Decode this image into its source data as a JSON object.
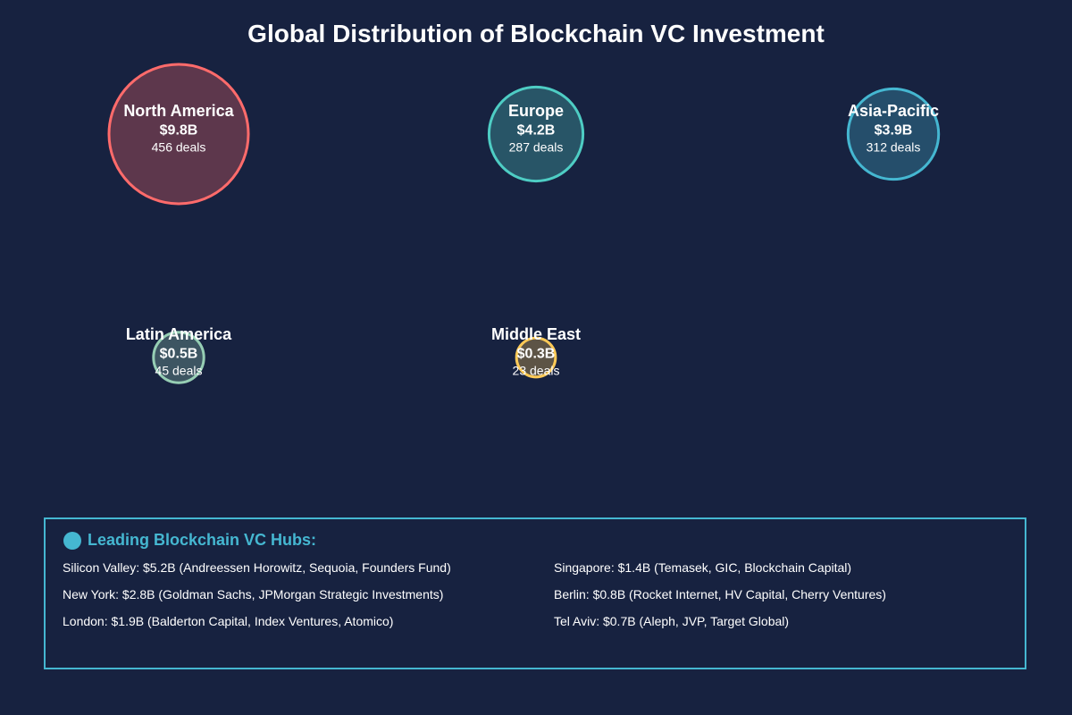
{
  "chart_data": {
    "type": "bubble",
    "title": "Global Distribution of Blockchain VC Investment",
    "unit": "USD billions",
    "regions": [
      {
        "name": "North America",
        "value_label": "$9.8B",
        "value": 9.8,
        "deals_label": "456 deals",
        "deals": 456,
        "color": "#ff6b6b"
      },
      {
        "name": "Europe",
        "value_label": "$4.2B",
        "value": 4.2,
        "deals_label": "287 deals",
        "deals": 287,
        "color": "#4ecdc4"
      },
      {
        "name": "Asia-Pacific",
        "value_label": "$3.9B",
        "value": 3.9,
        "deals_label": "312 deals",
        "deals": 312,
        "color": "#45b7d1"
      },
      {
        "name": "Latin America",
        "value_label": "$0.5B",
        "value": 0.5,
        "deals_label": "45 deals",
        "deals": 45,
        "color": "#96ceb4"
      },
      {
        "name": "Middle East",
        "value_label": "$0.3B",
        "value": 0.3,
        "deals_label": "23 deals",
        "deals": 23,
        "color": "#feca57"
      }
    ]
  },
  "hubs": {
    "title": "Leading Blockchain VC Hubs:",
    "left": [
      "Silicon Valley: $5.2B (Andreessen Horowitz, Sequoia, Founders Fund)",
      "New York: $2.8B (Goldman Sachs, JPMorgan Strategic Investments)",
      "London: $1.9B (Balderton Capital, Index Ventures, Atomico)"
    ],
    "right": [
      "Singapore: $1.4B (Temasek, GIC, Blockchain Capital)",
      "Berlin: $0.8B (Rocket Internet, HV Capital, Cherry Ventures)",
      "Tel Aviv: $0.7B (Aleph, JVP, Target Global)"
    ]
  }
}
